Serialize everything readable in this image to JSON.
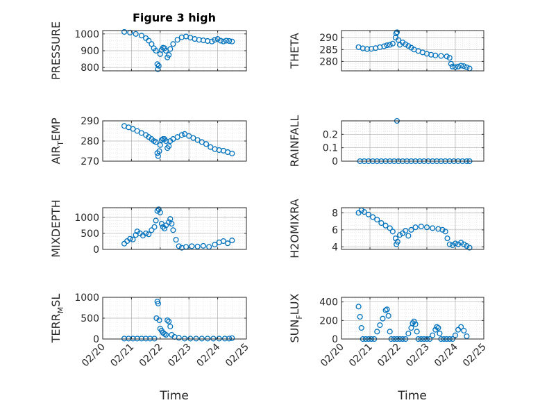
{
  "figure": {
    "title": "Figure 3 high"
  },
  "colors": {
    "marker": "#0072BD",
    "axis": "#262626",
    "grid": "#b0b0b0"
  },
  "chart_data": [
    {
      "type": "scatter",
      "ylabel": "PRESSURE",
      "ylim": [
        780,
        1020
      ],
      "yticks": [
        800,
        900,
        1000
      ],
      "xlim": [
        0,
        5
      ],
      "xticks": [
        0,
        1,
        2,
        3,
        4,
        5
      ],
      "xticklabels": [
        "02/20",
        "02/21",
        "02/22",
        "02/23",
        "02/24",
        "02/25"
      ],
      "grid": true,
      "points": [
        [
          0.75,
          1012
        ],
        [
          0.95,
          1008
        ],
        [
          1.15,
          1000
        ],
        [
          1.35,
          990
        ],
        [
          1.5,
          975
        ],
        [
          1.6,
          960
        ],
        [
          1.7,
          940
        ],
        [
          1.78,
          915
        ],
        [
          1.85,
          900
        ],
        [
          1.9,
          820
        ],
        [
          1.92,
          790
        ],
        [
          1.95,
          810
        ],
        [
          2.0,
          880
        ],
        [
          2.05,
          905
        ],
        [
          2.1,
          918
        ],
        [
          2.15,
          915
        ],
        [
          2.2,
          900
        ],
        [
          2.25,
          860
        ],
        [
          2.3,
          875
        ],
        [
          2.35,
          910
        ],
        [
          2.45,
          940
        ],
        [
          2.6,
          965
        ],
        [
          2.75,
          980
        ],
        [
          2.9,
          985
        ],
        [
          3.05,
          978
        ],
        [
          3.2,
          970
        ],
        [
          3.35,
          965
        ],
        [
          3.5,
          962
        ],
        [
          3.65,
          958
        ],
        [
          3.8,
          955
        ],
        [
          3.9,
          965
        ],
        [
          4.0,
          970
        ],
        [
          4.1,
          960
        ],
        [
          4.2,
          955
        ],
        [
          4.3,
          960
        ],
        [
          4.4,
          958
        ],
        [
          4.5,
          955
        ]
      ]
    },
    {
      "type": "scatter",
      "ylabel": "THETA",
      "ylim": [
        276,
        293
      ],
      "yticks": [
        280,
        285,
        290
      ],
      "xlim": [
        0,
        5
      ],
      "xticks": [
        0,
        1,
        2,
        3,
        4,
        5
      ],
      "xticklabels": [
        "02/20",
        "02/21",
        "02/22",
        "02/23",
        "02/24",
        "02/25"
      ],
      "grid": true,
      "points": [
        [
          0.6,
          286
        ],
        [
          0.75,
          285.5
        ],
        [
          0.9,
          285.2
        ],
        [
          1.05,
          285.3
        ],
        [
          1.2,
          285.6
        ],
        [
          1.35,
          286
        ],
        [
          1.5,
          286.4
        ],
        [
          1.6,
          286.8
        ],
        [
          1.7,
          287
        ],
        [
          1.8,
          287.5
        ],
        [
          1.9,
          290
        ],
        [
          1.92,
          291.8
        ],
        [
          1.95,
          292.3
        ],
        [
          2.0,
          289
        ],
        [
          2.05,
          287
        ],
        [
          2.15,
          288
        ],
        [
          2.25,
          287.2
        ],
        [
          2.35,
          286.5
        ],
        [
          2.45,
          285.8
        ],
        [
          2.55,
          285
        ],
        [
          2.7,
          284.4
        ],
        [
          2.85,
          283.8
        ],
        [
          3.0,
          283.2
        ],
        [
          3.15,
          282.8
        ],
        [
          3.3,
          282.5
        ],
        [
          3.5,
          282.3
        ],
        [
          3.7,
          282.1
        ],
        [
          3.8,
          281.5
        ],
        [
          3.85,
          279
        ],
        [
          3.9,
          277.8
        ],
        [
          4.0,
          277.6
        ],
        [
          4.1,
          277.8
        ],
        [
          4.2,
          278.2
        ],
        [
          4.3,
          278
        ],
        [
          4.4,
          277.5
        ],
        [
          4.5,
          277
        ]
      ]
    },
    {
      "type": "scatter",
      "ylabel": "AIR_TEMP",
      "ylim": [
        270,
        290
      ],
      "yticks": [
        270,
        280,
        290
      ],
      "xlim": [
        0,
        5
      ],
      "xticks": [
        0,
        1,
        2,
        3,
        4,
        5
      ],
      "xticklabels": [
        "02/20",
        "02/21",
        "02/22",
        "02/23",
        "02/24",
        "02/25"
      ],
      "grid": true,
      "points": [
        [
          0.75,
          287.5
        ],
        [
          0.9,
          286.8
        ],
        [
          1.05,
          286
        ],
        [
          1.2,
          285
        ],
        [
          1.35,
          284
        ],
        [
          1.5,
          283
        ],
        [
          1.6,
          282
        ],
        [
          1.7,
          281
        ],
        [
          1.78,
          280
        ],
        [
          1.85,
          279.5
        ],
        [
          1.9,
          274
        ],
        [
          1.93,
          272.5
        ],
        [
          1.97,
          275
        ],
        [
          2.0,
          278
        ],
        [
          2.05,
          280.5
        ],
        [
          2.1,
          281
        ],
        [
          2.15,
          281
        ],
        [
          2.2,
          280
        ],
        [
          2.25,
          276.5
        ],
        [
          2.3,
          277.5
        ],
        [
          2.35,
          280
        ],
        [
          2.45,
          281
        ],
        [
          2.6,
          282
        ],
        [
          2.75,
          283
        ],
        [
          2.85,
          283.5
        ],
        [
          3.0,
          282.5
        ],
        [
          3.15,
          281.5
        ],
        [
          3.3,
          280.5
        ],
        [
          3.45,
          279.5
        ],
        [
          3.6,
          278.5
        ],
        [
          3.75,
          277
        ],
        [
          3.9,
          276
        ],
        [
          4.05,
          275.5
        ],
        [
          4.2,
          275.2
        ],
        [
          4.35,
          274.5
        ],
        [
          4.5,
          273.8
        ]
      ]
    },
    {
      "type": "scatter",
      "ylabel": "RAINFALL",
      "ylim": [
        0,
        0.3
      ],
      "yticks": [
        0,
        0.1,
        0.2
      ],
      "xlim": [
        0,
        5
      ],
      "xticks": [
        0,
        1,
        2,
        3,
        4,
        5
      ],
      "xticklabels": [
        "02/20",
        "02/21",
        "02/22",
        "02/23",
        "02/24",
        "02/25"
      ],
      "grid": true,
      "points": [
        [
          0.65,
          0
        ],
        [
          0.8,
          0
        ],
        [
          0.95,
          0
        ],
        [
          1.1,
          0
        ],
        [
          1.25,
          0
        ],
        [
          1.4,
          0
        ],
        [
          1.55,
          0
        ],
        [
          1.7,
          0
        ],
        [
          1.85,
          0
        ],
        [
          1.95,
          0.3
        ],
        [
          2.0,
          0
        ],
        [
          2.15,
          0
        ],
        [
          2.3,
          0
        ],
        [
          2.45,
          0
        ],
        [
          2.6,
          0
        ],
        [
          2.75,
          0
        ],
        [
          2.9,
          0
        ],
        [
          3.05,
          0
        ],
        [
          3.2,
          0
        ],
        [
          3.35,
          0
        ],
        [
          3.5,
          0
        ],
        [
          3.65,
          0
        ],
        [
          3.8,
          0
        ],
        [
          3.95,
          0
        ],
        [
          4.1,
          0
        ],
        [
          4.25,
          0
        ],
        [
          4.4,
          0
        ],
        [
          4.5,
          0
        ]
      ]
    },
    {
      "type": "scatter",
      "ylabel": "MIXDEPTH",
      "ylim": [
        0,
        1300
      ],
      "yticks": [
        0,
        500,
        1000
      ],
      "xlim": [
        0,
        5
      ],
      "xticks": [
        0,
        1,
        2,
        3,
        4,
        5
      ],
      "xticklabels": [
        "02/20",
        "02/21",
        "02/22",
        "02/23",
        "02/24",
        "02/25"
      ],
      "grid": true,
      "points": [
        [
          0.75,
          180
        ],
        [
          0.85,
          260
        ],
        [
          0.95,
          330
        ],
        [
          1.05,
          310
        ],
        [
          1.15,
          450
        ],
        [
          1.2,
          560
        ],
        [
          1.3,
          500
        ],
        [
          1.4,
          430
        ],
        [
          1.5,
          500
        ],
        [
          1.6,
          470
        ],
        [
          1.7,
          600
        ],
        [
          1.8,
          700
        ],
        [
          1.85,
          900
        ],
        [
          1.9,
          1200
        ],
        [
          1.95,
          1250
        ],
        [
          2.0,
          1150
        ],
        [
          2.05,
          800
        ],
        [
          2.1,
          700
        ],
        [
          2.15,
          650
        ],
        [
          2.2,
          750
        ],
        [
          2.3,
          850
        ],
        [
          2.35,
          950
        ],
        [
          2.4,
          800
        ],
        [
          2.45,
          600
        ],
        [
          2.55,
          300
        ],
        [
          2.65,
          100
        ],
        [
          2.75,
          50
        ],
        [
          2.9,
          80
        ],
        [
          3.1,
          100
        ],
        [
          3.3,
          90
        ],
        [
          3.5,
          110
        ],
        [
          3.7,
          80
        ],
        [
          3.9,
          150
        ],
        [
          4.05,
          220
        ],
        [
          4.2,
          260
        ],
        [
          4.35,
          190
        ],
        [
          4.5,
          280
        ]
      ]
    },
    {
      "type": "scatter",
      "ylabel": "H2OMIXRA",
      "ylim": [
        3.7,
        8.6
      ],
      "yticks": [
        4,
        6,
        8
      ],
      "xlim": [
        0,
        5
      ],
      "xticks": [
        0,
        1,
        2,
        3,
        4,
        5
      ],
      "xticklabels": [
        "02/20",
        "02/21",
        "02/22",
        "02/23",
        "02/24",
        "02/25"
      ],
      "grid": true,
      "points": [
        [
          0.6,
          8
        ],
        [
          0.7,
          8.3
        ],
        [
          0.8,
          8.1
        ],
        [
          0.95,
          7.8
        ],
        [
          1.1,
          7.5
        ],
        [
          1.25,
          7.2
        ],
        [
          1.4,
          6.8
        ],
        [
          1.55,
          6.5
        ],
        [
          1.7,
          6.2
        ],
        [
          1.8,
          5.8
        ],
        [
          1.9,
          5
        ],
        [
          1.93,
          4.3
        ],
        [
          1.97,
          4.6
        ],
        [
          2.05,
          5.4
        ],
        [
          2.15,
          5.6
        ],
        [
          2.25,
          5.9
        ],
        [
          2.35,
          5.3
        ],
        [
          2.45,
          6
        ],
        [
          2.6,
          6.3
        ],
        [
          2.8,
          6.4
        ],
        [
          3.0,
          6.3
        ],
        [
          3.2,
          6.2
        ],
        [
          3.4,
          6.1
        ],
        [
          3.55,
          6.0
        ],
        [
          3.65,
          5.8
        ],
        [
          3.72,
          5
        ],
        [
          3.8,
          4.3
        ],
        [
          3.9,
          4.2
        ],
        [
          4.0,
          4.4
        ],
        [
          4.1,
          4.3
        ],
        [
          4.2,
          4.5
        ],
        [
          4.3,
          4.3
        ],
        [
          4.4,
          4.1
        ],
        [
          4.5,
          3.9
        ]
      ]
    },
    {
      "type": "scatter",
      "ylabel": "TERR_MSL",
      "ylim": [
        0,
        1000
      ],
      "yticks": [
        0,
        500,
        1000
      ],
      "xlim": [
        0,
        5
      ],
      "xticks": [
        0,
        1,
        2,
        3,
        4,
        5
      ],
      "xticklabels": [
        "02/20",
        "02/21",
        "02/22",
        "02/23",
        "02/24",
        "02/25"
      ],
      "grid": true,
      "points": [
        [
          0.75,
          10
        ],
        [
          0.9,
          10
        ],
        [
          1.05,
          10
        ],
        [
          1.2,
          10
        ],
        [
          1.35,
          10
        ],
        [
          1.5,
          10
        ],
        [
          1.65,
          10
        ],
        [
          1.8,
          10
        ],
        [
          1.87,
          500
        ],
        [
          1.9,
          900
        ],
        [
          1.93,
          850
        ],
        [
          1.97,
          450
        ],
        [
          2.0,
          250
        ],
        [
          2.05,
          200
        ],
        [
          2.1,
          150
        ],
        [
          2.15,
          120
        ],
        [
          2.2,
          100
        ],
        [
          2.25,
          450
        ],
        [
          2.3,
          420
        ],
        [
          2.35,
          300
        ],
        [
          2.4,
          100
        ],
        [
          2.5,
          50
        ],
        [
          2.65,
          30
        ],
        [
          2.85,
          10
        ],
        [
          3.05,
          10
        ],
        [
          3.25,
          10
        ],
        [
          3.45,
          10
        ],
        [
          3.65,
          10
        ],
        [
          3.85,
          10
        ],
        [
          4.05,
          10
        ],
        [
          4.25,
          10
        ],
        [
          4.4,
          10
        ],
        [
          4.5,
          20
        ]
      ]
    },
    {
      "type": "scatter",
      "ylabel": "SUN_FLUX",
      "ylim": [
        0,
        450
      ],
      "yticks": [
        0,
        200,
        400
      ],
      "xlim": [
        0,
        5
      ],
      "xticks": [
        0,
        1,
        2,
        3,
        4,
        5
      ],
      "xticklabels": [
        "02/20",
        "02/21",
        "02/22",
        "02/23",
        "02/24",
        "02/25"
      ],
      "grid": true,
      "points": [
        [
          0.6,
          350
        ],
        [
          0.65,
          240
        ],
        [
          0.7,
          120
        ],
        [
          0.75,
          0
        ],
        [
          0.85,
          0
        ],
        [
          0.95,
          0
        ],
        [
          1.05,
          0
        ],
        [
          1.15,
          0
        ],
        [
          1.25,
          80
        ],
        [
          1.35,
          150
        ],
        [
          1.45,
          220
        ],
        [
          1.55,
          310
        ],
        [
          1.6,
          320
        ],
        [
          1.65,
          250
        ],
        [
          1.7,
          80
        ],
        [
          1.75,
          0
        ],
        [
          1.85,
          0
        ],
        [
          1.95,
          0
        ],
        [
          2.05,
          0
        ],
        [
          2.15,
          0
        ],
        [
          2.25,
          0
        ],
        [
          2.35,
          60
        ],
        [
          2.45,
          120
        ],
        [
          2.5,
          170
        ],
        [
          2.55,
          190
        ],
        [
          2.6,
          160
        ],
        [
          2.65,
          80
        ],
        [
          2.7,
          0
        ],
        [
          2.8,
          0
        ],
        [
          2.9,
          0
        ],
        [
          3.0,
          0
        ],
        [
          3.1,
          0
        ],
        [
          3.2,
          40
        ],
        [
          3.3,
          100
        ],
        [
          3.35,
          130
        ],
        [
          3.4,
          120
        ],
        [
          3.45,
          60
        ],
        [
          3.5,
          0
        ],
        [
          3.6,
          0
        ],
        [
          3.7,
          0
        ],
        [
          3.8,
          0
        ],
        [
          3.9,
          0
        ],
        [
          4.0,
          40
        ],
        [
          4.1,
          100
        ],
        [
          4.2,
          130
        ],
        [
          4.3,
          90
        ],
        [
          4.4,
          30
        ]
      ]
    }
  ],
  "xlabels": [
    "Time",
    "Time"
  ]
}
